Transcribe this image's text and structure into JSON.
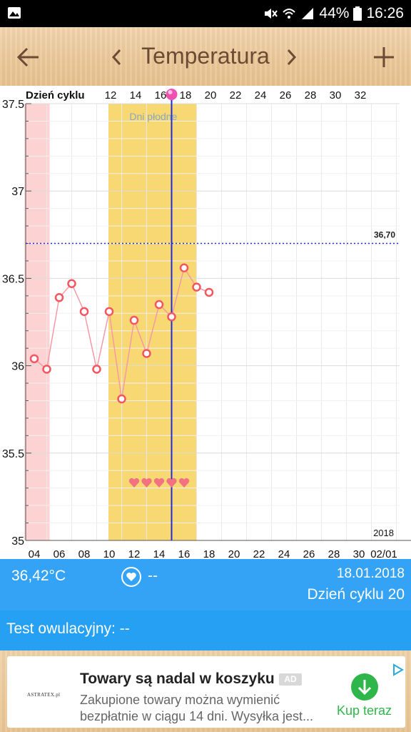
{
  "status_bar": {
    "battery": "44%",
    "time": "16:26"
  },
  "toolbar": {
    "title": "Temperatura"
  },
  "chart_data": {
    "type": "line",
    "top_axis_label": "Dzień cyklu",
    "top_ticks": [
      12,
      14,
      16,
      18,
      20,
      22,
      24,
      26,
      28,
      30,
      32
    ],
    "bottom_ticks": [
      "04",
      "06",
      "08",
      "10",
      "12",
      "14",
      "16",
      "18",
      "20",
      "22",
      "24",
      "26",
      "28",
      "30",
      "02/01"
    ],
    "year_label": "2018",
    "y_ticks": [
      "35",
      "35.5",
      "36",
      "36.5",
      "37",
      "37.5"
    ],
    "ylim": [
      35,
      37.5
    ],
    "fertile_label": "Dni płodne",
    "fertile_days": [
      10,
      16
    ],
    "period_days": [
      3.5,
      5
    ],
    "threshold_value": 36.7,
    "threshold_label": "36,70",
    "current_day": 15,
    "grid": true,
    "hearts_count": 5,
    "hearts_days": [
      12,
      13,
      14,
      15,
      16
    ],
    "series": [
      {
        "x": [
          4,
          5,
          6,
          7,
          8,
          9,
          10,
          11,
          12,
          13,
          14,
          15,
          16,
          17,
          18
        ],
        "values": [
          36.04,
          35.98,
          36.39,
          36.47,
          36.31,
          35.98,
          36.31,
          35.81,
          36.26,
          36.07,
          36.35,
          36.28,
          36.56,
          36.45,
          36.42
        ]
      }
    ],
    "colors": {
      "line": "#f59aa3",
      "marker": "#f4555f",
      "fertile": "#f8d872",
      "period": "#fcd2d2",
      "current_day_line": "#1f2bd4",
      "threshold_line": "#1f2bd4",
      "heart": "#f2737f",
      "fertile_label": "#8aa8bd"
    }
  },
  "info": {
    "temperature": "36,42°C",
    "heart_value": "--",
    "date": "18.01.2018",
    "cycle_day": "Dzień cyklu 20"
  },
  "ovulation": {
    "label": "Test owulacyjny: --"
  },
  "ad": {
    "logo_text": "ASTRATEX.pl",
    "title": "Towary są nadal w koszyku",
    "badge": "AD",
    "description": "Zakupione towary można wymienić bezpłatnie w ciągu 14 dni. Wysyłka jest...",
    "cta": "Kup teraz"
  }
}
